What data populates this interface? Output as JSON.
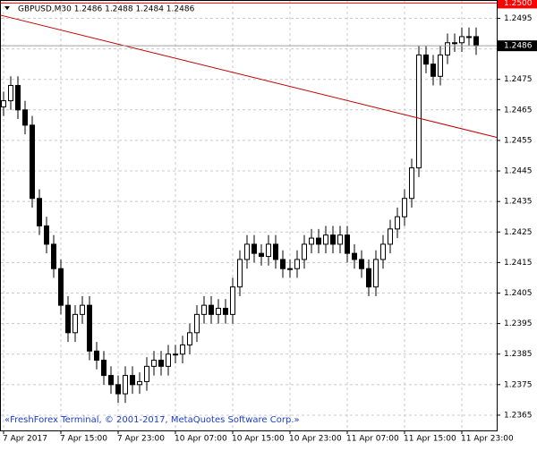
{
  "chart_data": {
    "type": "candlestick",
    "title": "GBPUSD,M30  1.2486 1.2488 1.2484 1.2486",
    "footer": "«FreshForex Terminal, © 2001-2017, MetaQuotes Software Corp.»",
    "open": [
      1.2466,
      1.2468,
      1.2473,
      1.2465,
      1.246,
      1.2436,
      1.2427,
      1.2421,
      1.2413,
      1.2401,
      1.2392,
      1.2398,
      1.2401,
      1.2386,
      1.2383,
      1.2378,
      1.2375,
      1.2372,
      1.2378,
      1.2375,
      1.2376,
      1.2381,
      1.2383,
      1.2381,
      1.2385,
      1.2385,
      1.2388,
      1.2392,
      1.2398,
      1.2401,
      1.2398,
      1.24,
      1.2398,
      1.2407,
      1.2416,
      1.2421,
      1.2418,
      1.2417,
      1.2421,
      1.2416,
      1.2413,
      1.2413,
      1.2416,
      1.2421,
      1.2423,
      1.2421,
      1.2424,
      1.2421,
      1.2424,
      1.2418,
      1.2416,
      1.2413,
      1.2407,
      1.2416,
      1.2421,
      1.2426,
      1.243,
      1.2436,
      1.2446,
      1.2483,
      1.248,
      1.2476,
      1.2483,
      1.2487,
      1.2487,
      1.2489,
      1.2489
    ],
    "high": [
      1.2471,
      1.2476,
      1.2476,
      1.2468,
      1.2463,
      1.2439,
      1.243,
      1.2424,
      1.2416,
      1.2404,
      1.2401,
      1.2404,
      1.2404,
      1.2389,
      1.2386,
      1.2381,
      1.2378,
      1.2381,
      1.2381,
      1.2379,
      1.2384,
      1.2386,
      1.2386,
      1.2388,
      1.2388,
      1.2391,
      1.2395,
      1.2401,
      1.2404,
      1.2404,
      1.2403,
      1.2403,
      1.241,
      1.2419,
      1.2424,
      1.2424,
      1.2421,
      1.2424,
      1.2424,
      1.2419,
      1.2416,
      1.2419,
      1.2424,
      1.2426,
      1.2426,
      1.2427,
      1.2427,
      1.2427,
      1.2427,
      1.2421,
      1.2419,
      1.2416,
      1.2419,
      1.2424,
      1.2429,
      1.2433,
      1.2439,
      1.2449,
      1.2486,
      1.2486,
      1.2483,
      1.2486,
      1.249,
      1.249,
      1.2492,
      1.2492,
      1.2492
    ],
    "low": [
      1.2463,
      1.2465,
      1.2462,
      1.2457,
      1.2433,
      1.2424,
      1.2418,
      1.241,
      1.2398,
      1.2389,
      1.2389,
      1.2395,
      1.2383,
      1.238,
      1.2375,
      1.2372,
      1.2369,
      1.2369,
      1.2372,
      1.2372,
      1.2373,
      1.2378,
      1.2378,
      1.2378,
      1.2382,
      1.2382,
      1.2385,
      1.2389,
      1.2395,
      1.2395,
      1.2395,
      1.2395,
      1.2395,
      1.2404,
      1.2413,
      1.2415,
      1.2414,
      1.2414,
      1.2413,
      1.241,
      1.241,
      1.241,
      1.2413,
      1.2418,
      1.2418,
      1.2418,
      1.2418,
      1.2418,
      1.2415,
      1.2413,
      1.241,
      1.2404,
      1.2404,
      1.2413,
      1.2418,
      1.2423,
      1.2427,
      1.2433,
      1.2443,
      1.2477,
      1.2473,
      1.2473,
      1.248,
      1.2484,
      1.2484,
      1.2486,
      1.2483
    ],
    "close": [
      1.2468,
      1.2473,
      1.2465,
      1.246,
      1.2436,
      1.2427,
      1.2421,
      1.2413,
      1.2401,
      1.2392,
      1.2398,
      1.2401,
      1.2386,
      1.2383,
      1.2378,
      1.2375,
      1.2372,
      1.2378,
      1.2375,
      1.2376,
      1.2381,
      1.2383,
      1.2381,
      1.2385,
      1.2385,
      1.2388,
      1.2392,
      1.2398,
      1.2401,
      1.2398,
      1.24,
      1.2398,
      1.2407,
      1.2416,
      1.2421,
      1.2418,
      1.2417,
      1.2421,
      1.2416,
      1.2413,
      1.2413,
      1.2416,
      1.2421,
      1.2423,
      1.2421,
      1.2424,
      1.2421,
      1.2424,
      1.2418,
      1.2416,
      1.2413,
      1.2407,
      1.2416,
      1.2421,
      1.2426,
      1.243,
      1.2436,
      1.2446,
      1.2483,
      1.248,
      1.2476,
      1.2483,
      1.2487,
      1.2487,
      1.2489,
      1.2489,
      1.2486
    ],
    "up_color": "#ffffff",
    "down_color": "#000000",
    "ylim": [
      1.236,
      1.2501
    ],
    "yticks": [
      1.2365,
      1.2375,
      1.2385,
      1.2395,
      1.2405,
      1.2415,
      1.2425,
      1.2435,
      1.2445,
      1.2455,
      1.2465,
      1.2475,
      1.2485,
      1.2495
    ],
    "xticks": [
      {
        "value": 0,
        "label": "7 Apr 2017"
      },
      {
        "value": 8,
        "label": "7 Apr 15:00"
      },
      {
        "value": 16,
        "label": "7 Apr 23:00"
      },
      {
        "value": 24,
        "label": "10 Apr 07:00"
      },
      {
        "value": 32,
        "label": "10 Apr 15:00"
      },
      {
        "value": 40,
        "label": "10 Apr 23:00"
      },
      {
        "value": 48,
        "label": "11 Apr 07:00"
      },
      {
        "value": 56,
        "label": "11 Apr 15:00"
      },
      {
        "value": 64,
        "label": "11 Apr 23:00"
      }
    ],
    "grid": true,
    "price_line": 1.2486,
    "alert_line": {
      "value": 1.25,
      "label": "1.2500",
      "color": "#ff0000"
    },
    "trendline": {
      "start": 1.2496,
      "end": 1.2456,
      "color": "#c00000"
    }
  }
}
